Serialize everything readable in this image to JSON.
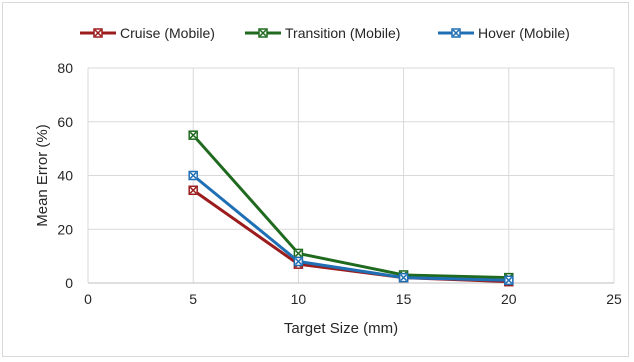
{
  "chart_data": {
    "type": "line",
    "title": "",
    "xlabel": "Target Size (mm)",
    "ylabel": "Mean Error  (%)",
    "xlim": [
      0,
      25
    ],
    "ylim": [
      0,
      80
    ],
    "xticks": [
      0,
      5,
      10,
      15,
      20,
      25
    ],
    "yticks": [
      0,
      20,
      40,
      60,
      80
    ],
    "grid": true,
    "legend_position": "top",
    "series": [
      {
        "name": "Cruise (Mobile)",
        "color": "#9b1c1c",
        "x": [
          5,
          10,
          15,
          20
        ],
        "y": [
          34.5,
          7,
          2,
          0.5
        ]
      },
      {
        "name": "Transition (Mobile)",
        "color": "#1f6a1f",
        "x": [
          5,
          10,
          15,
          20
        ],
        "y": [
          55,
          11,
          3,
          2
        ]
      },
      {
        "name": "Hover (Mobile)",
        "color": "#1f6fb5",
        "x": [
          5,
          10,
          15,
          20
        ],
        "y": [
          40,
          8,
          2,
          1
        ]
      }
    ]
  }
}
